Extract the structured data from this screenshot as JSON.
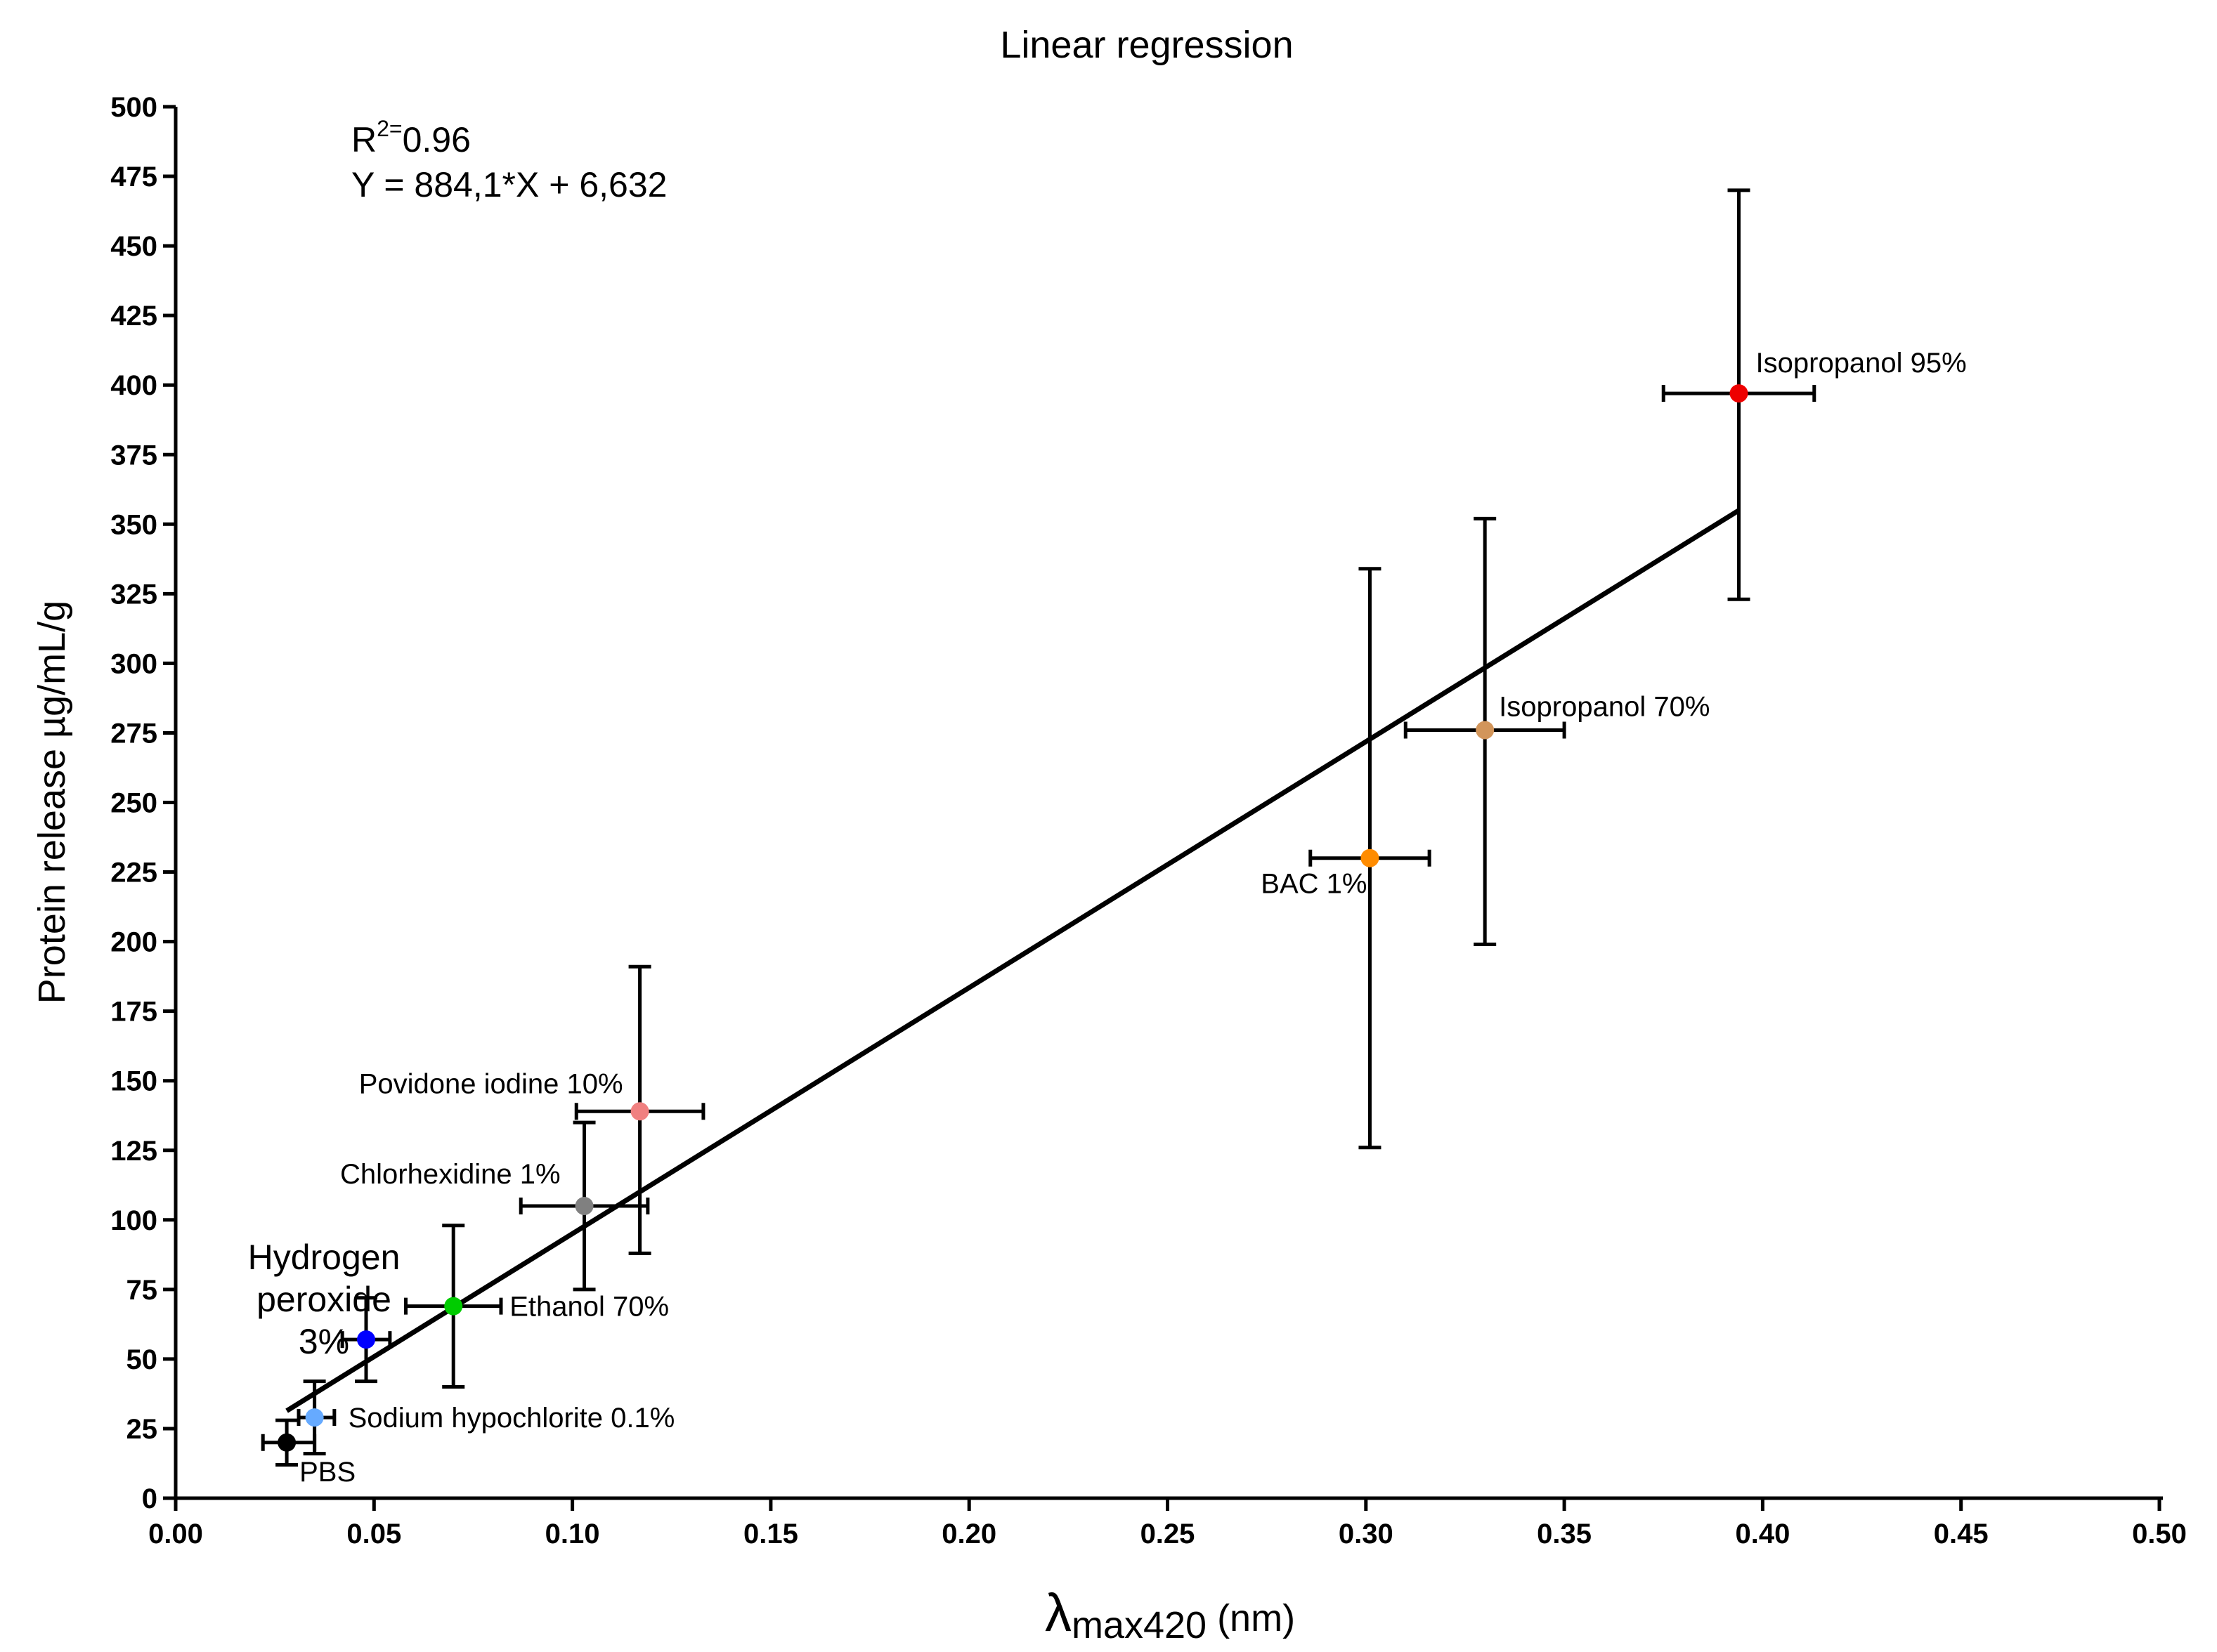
{
  "chart_data": {
    "type": "scatter",
    "title": "Linear regression",
    "xlabel_symbol": "λ",
    "xlabel_sub": "max420",
    "xlabel_unit": " (nm)",
    "ylabel": "Protein release µg/mL/g",
    "xlim": [
      0,
      0.5
    ],
    "ylim": [
      0,
      500
    ],
    "x_ticks": [
      0,
      0.05,
      0.1,
      0.15,
      0.2,
      0.25,
      0.3,
      0.35,
      0.4,
      0.45,
      0.5
    ],
    "x_tick_labels": [
      "0.00",
      "0.05",
      "0.10",
      "0.15",
      "0.20",
      "0.25",
      "0.30",
      "0.35",
      "0.40",
      "0.45",
      "0.50"
    ],
    "y_ticks": [
      0,
      25,
      50,
      75,
      100,
      125,
      150,
      175,
      200,
      225,
      250,
      275,
      300,
      325,
      350,
      375,
      400,
      425,
      450,
      475,
      500
    ],
    "y_tick_labels": [
      "0",
      "25",
      "50",
      "75",
      "100",
      "125",
      "150",
      "175",
      "200",
      "225",
      "250",
      "275",
      "300",
      "325",
      "350",
      "375",
      "400",
      "425",
      "450",
      "475",
      "500"
    ],
    "annotation": {
      "r_main": "R",
      "r_sup": "2=",
      "r_val": "0.96",
      "equation": "Y = 884,1*X + 6,632"
    },
    "regression": {
      "slope": 884.1,
      "intercept": 6.632,
      "x_start": 0.028,
      "x_end": 0.394
    },
    "points": [
      {
        "label": "PBS",
        "x": 0.028,
        "y": 20,
        "x_err": [
          0.022,
          0.035
        ],
        "y_err": [
          12,
          28
        ],
        "color": "#000000"
      },
      {
        "label": "Sodium hypochlorite 0.1%",
        "x": 0.035,
        "y": 29,
        "x_err": [
          0.031,
          0.04
        ],
        "y_err": [
          16,
          42
        ],
        "color": "#66aaff"
      },
      {
        "label": "Hydrogen",
        "label2": "peroxide",
        "label3": "3%",
        "x": 0.048,
        "y": 57,
        "x_err": [
          0.042,
          0.054
        ],
        "y_err": [
          42,
          72
        ],
        "color": "#0000ff"
      },
      {
        "label": "Ethanol 70%",
        "x": 0.07,
        "y": 69,
        "x_err": [
          0.058,
          0.082
        ],
        "y_err": [
          40,
          98
        ],
        "color": "#00cc00"
      },
      {
        "label": "Chlorhexidine 1%",
        "x": 0.103,
        "y": 105,
        "x_err": [
          0.087,
          0.119
        ],
        "y_err": [
          75,
          135
        ],
        "color": "#808080"
      },
      {
        "label": "Povidone iodine 10%",
        "x": 0.117,
        "y": 139,
        "x_err": [
          0.101,
          0.133
        ],
        "y_err": [
          88,
          191
        ],
        "color": "#f08080"
      },
      {
        "label": "BAC 1%",
        "x": 0.301,
        "y": 230,
        "x_err": [
          0.286,
          0.316
        ],
        "y_err": [
          126,
          334
        ],
        "color": "#ff8c00"
      },
      {
        "label": "Isopropanol 70%",
        "x": 0.33,
        "y": 276,
        "x_err": [
          0.31,
          0.35
        ],
        "y_err": [
          199,
          352
        ],
        "color": "#d2955a"
      },
      {
        "label": "Isopropanol 95%",
        "x": 0.394,
        "y": 397,
        "x_err": [
          0.375,
          0.413
        ],
        "y_err": [
          323,
          470
        ],
        "color": "#ee0000"
      }
    ]
  }
}
